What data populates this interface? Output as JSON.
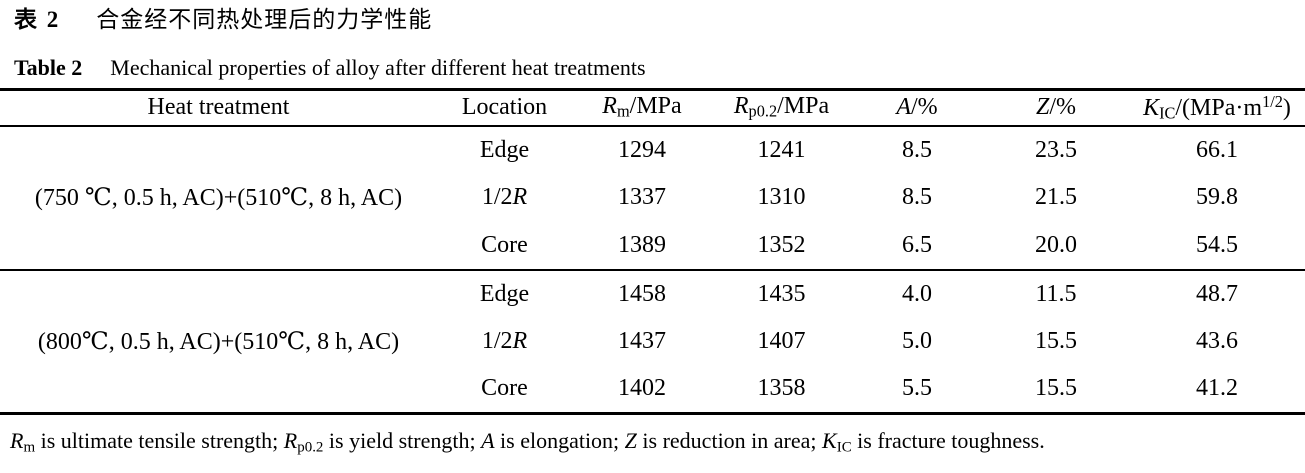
{
  "titles": {
    "zh": {
      "label": "表 2",
      "text": "合金经不同热处理后的力学性能"
    },
    "en": {
      "label": "Table 2",
      "text": "Mechanical properties of alloy after different heat treatments"
    }
  },
  "table": {
    "columns": [
      {
        "name": "heat-treatment",
        "rich": [
          {
            "t": "Heat treatment"
          }
        ]
      },
      {
        "name": "location",
        "rich": [
          {
            "t": "Location"
          }
        ]
      },
      {
        "name": "rm",
        "rich": [
          {
            "t": "R",
            "i": 1
          },
          {
            "t": "m",
            "sub": 1
          },
          {
            "t": "/MPa"
          }
        ]
      },
      {
        "name": "rp02",
        "rich": [
          {
            "t": "R",
            "i": 1
          },
          {
            "t": "p0.2",
            "sub": 1
          },
          {
            "t": "/MPa"
          }
        ]
      },
      {
        "name": "a-percent",
        "rich": [
          {
            "t": "A",
            "i": 1
          },
          {
            "t": "/%"
          }
        ]
      },
      {
        "name": "z-percent",
        "rich": [
          {
            "t": "Z",
            "i": 1
          },
          {
            "t": "/%"
          }
        ]
      },
      {
        "name": "kic",
        "rich": [
          {
            "t": "K",
            "i": 1
          },
          {
            "t": "IC",
            "sub": 1
          },
          {
            "t": "/(MPa·m"
          },
          {
            "t": "1/2",
            "sup": 1
          },
          {
            "t": ")"
          }
        ]
      }
    ],
    "groups": [
      {
        "treatment": "(750 ℃, 0.5 h, AC)+(510℃, 8 h, AC)",
        "rows": [
          {
            "location": [
              {
                "t": "Edge"
              }
            ],
            "values": [
              "1294",
              "1241",
              "8.5",
              "23.5",
              "66.1"
            ]
          },
          {
            "location": [
              {
                "t": "1/2"
              },
              {
                "t": "R",
                "i": 1
              }
            ],
            "values": [
              "1337",
              "1310",
              "8.5",
              "21.5",
              "59.8"
            ]
          },
          {
            "location": [
              {
                "t": "Core"
              }
            ],
            "values": [
              "1389",
              "1352",
              "6.5",
              "20.0",
              "54.5"
            ]
          }
        ]
      },
      {
        "treatment": "(800℃, 0.5 h, AC)+(510℃, 8 h, AC)",
        "rows": [
          {
            "location": [
              {
                "t": "Edge"
              }
            ],
            "values": [
              "1458",
              "1435",
              "4.0",
              "11.5",
              "48.7"
            ]
          },
          {
            "location": [
              {
                "t": "1/2"
              },
              {
                "t": "R",
                "i": 1
              }
            ],
            "values": [
              "1437",
              "1407",
              "5.0",
              "15.5",
              "43.6"
            ]
          },
          {
            "location": [
              {
                "t": "Core"
              }
            ],
            "values": [
              "1402",
              "1358",
              "5.5",
              "15.5",
              "41.2"
            ]
          }
        ]
      }
    ]
  },
  "footnote": {
    "rich": [
      {
        "t": "R",
        "i": 1
      },
      {
        "t": "m",
        "sub": 1
      },
      {
        "t": " is ultimate tensile strength; "
      },
      {
        "t": "R",
        "i": 1
      },
      {
        "t": "p0.2",
        "sub": 1
      },
      {
        "t": " is yield strength; "
      },
      {
        "t": "A",
        "i": 1
      },
      {
        "t": " is elongation; "
      },
      {
        "t": "Z",
        "i": 1
      },
      {
        "t": " is reduction in area; "
      },
      {
        "t": "K",
        "i": 1
      },
      {
        "t": "IC",
        "sub": 1
      },
      {
        "t": " is fracture toughness."
      }
    ]
  },
  "chart_data": {
    "type": "table",
    "title": "Table 2 Mechanical properties of alloy after different heat treatments",
    "columns": [
      "Heat treatment",
      "Location",
      "Rm/MPa",
      "Rp0.2/MPa",
      "A/%",
      "Z/%",
      "KIC/(MPa·m^1/2)"
    ],
    "rows": [
      [
        "(750 ℃, 0.5 h, AC)+(510℃, 8 h, AC)",
        "Edge",
        1294,
        1241,
        8.5,
        23.5,
        66.1
      ],
      [
        "(750 ℃, 0.5 h, AC)+(510℃, 8 h, AC)",
        "1/2R",
        1337,
        1310,
        8.5,
        21.5,
        59.8
      ],
      [
        "(750 ℃, 0.5 h, AC)+(510℃, 8 h, AC)",
        "Core",
        1389,
        1352,
        6.5,
        20.0,
        54.5
      ],
      [
        "(800℃, 0.5 h, AC)+(510℃, 8 h, AC)",
        "Edge",
        1458,
        1435,
        4.0,
        11.5,
        48.7
      ],
      [
        "(800℃, 0.5 h, AC)+(510℃, 8 h, AC)",
        "1/2R",
        1437,
        1407,
        5.0,
        15.5,
        43.6
      ],
      [
        "(800℃, 0.5 h, AC)+(510℃, 8 h, AC)",
        "Core",
        1402,
        1358,
        5.5,
        15.5,
        41.2
      ]
    ]
  }
}
